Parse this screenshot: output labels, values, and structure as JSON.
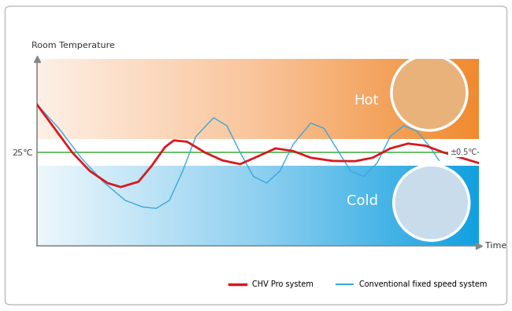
{
  "chart_data": {
    "type": "line",
    "y_label": "Room Temperature",
    "x_label": "Time",
    "xlim": [
      0,
      100
    ],
    "xticks": [],
    "ylim": [
      21.5,
      28.5
    ],
    "yticks": [
      {
        "value": 25,
        "label": "25℃"
      }
    ],
    "tick_labels": "y",
    "target": 25,
    "tolerance": 0.5,
    "annotations": [
      {
        "text": "Hot"
      },
      {
        "text": "Cold"
      },
      {
        "text": "±0.5℃"
      }
    ],
    "legend": "lower right",
    "series": [
      {
        "name": "CHV Pro system",
        "color": "#d7191f",
        "x": [
          0,
          4,
          8,
          12,
          16,
          19,
          23,
          26,
          29,
          31,
          34,
          38,
          42,
          46,
          50,
          54,
          58,
          62,
          67,
          72,
          76,
          80,
          84,
          88,
          92,
          96,
          100
        ],
        "values": [
          26.8,
          25.9,
          25.0,
          24.3,
          23.85,
          23.7,
          23.9,
          24.5,
          25.2,
          25.45,
          25.4,
          25.0,
          24.7,
          24.56,
          24.85,
          25.15,
          25.05,
          24.8,
          24.68,
          24.67,
          24.8,
          25.15,
          25.33,
          25.25,
          25.0,
          24.8,
          24.6
        ]
      },
      {
        "name": "Conventional fixed speed system",
        "color": "#3aa8dc",
        "x": [
          0,
          5,
          10,
          15,
          20,
          24,
          27,
          30,
          33,
          36,
          40,
          43,
          46,
          49,
          52,
          55,
          58,
          62,
          65,
          68,
          71,
          74,
          77,
          80,
          83,
          86,
          89,
          91
        ],
        "values": [
          26.8,
          25.9,
          24.8,
          23.9,
          23.2,
          22.95,
          22.9,
          23.2,
          24.3,
          25.6,
          26.3,
          26.0,
          25.0,
          24.1,
          23.85,
          24.3,
          25.3,
          26.1,
          25.9,
          25.1,
          24.3,
          24.1,
          24.6,
          25.6,
          26.0,
          25.8,
          25.2,
          24.7
        ]
      }
    ]
  }
}
